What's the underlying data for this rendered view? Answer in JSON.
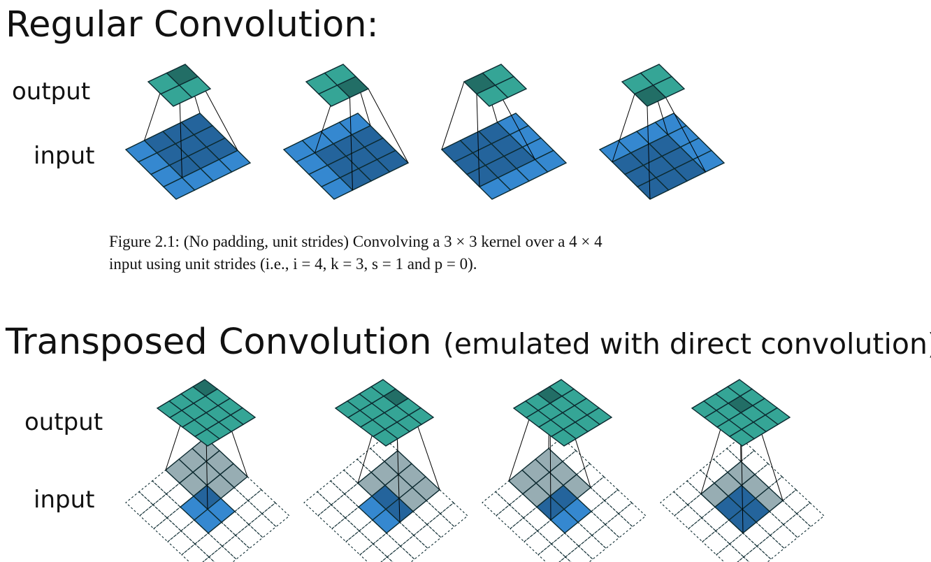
{
  "regular": {
    "heading": "Regular Convolution:",
    "output_label": "output",
    "input_label": "input",
    "caption_line1": "Figure 2.1:  (No padding, unit strides) Convolving a 3 × 3 kernel over a 4 × 4",
    "caption_line2": "input using unit strides (i.e., i = 4, k = 3, s = 1 and p = 0)."
  },
  "transposed": {
    "heading_main": "Transposed Convolution",
    "heading_sub": "(emulated with direct convolution):",
    "output_label": "output",
    "input_label": "input"
  },
  "colors": {
    "output_teal": "#35a596",
    "output_teal_dark": "#226e66",
    "input_blue": "#3588d0",
    "input_blue_dark": "#24649c",
    "kernel_gray": "#97adb3",
    "grid_line": "#0c2a30"
  }
}
